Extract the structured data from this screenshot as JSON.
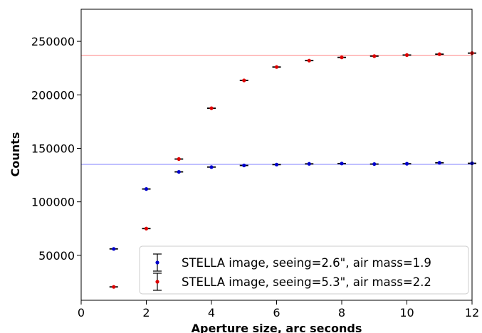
{
  "chart_data": {
    "type": "scatter",
    "xlabel": "Aperture size, arc seconds",
    "ylabel": "Counts",
    "xlim": [
      0,
      12
    ],
    "ylim": [
      8000,
      280000
    ],
    "xticks": [
      0,
      2,
      4,
      6,
      8,
      10,
      12
    ],
    "yticks": [
      50000,
      100000,
      150000,
      200000,
      250000
    ],
    "grid": false,
    "legend_position": "lower-right",
    "series": [
      {
        "name": "STELLA image, seeing=2.6\", air mass=1.9",
        "color": "#0000cc",
        "errorbar_color": "#000000",
        "x": [
          1,
          2,
          3,
          4,
          5,
          6,
          7,
          8,
          9,
          10,
          11,
          12
        ],
        "y": [
          56000,
          112000,
          128000,
          132500,
          134000,
          134800,
          135500,
          135800,
          135300,
          135600,
          136500,
          136000
        ],
        "reference_line": {
          "y": 135000,
          "color": "#9a9aff"
        }
      },
      {
        "name": "STELLA image, seeing=5.3\", air mass=2.2",
        "color": "#dd0000",
        "errorbar_color": "#000000",
        "x": [
          1,
          2,
          3,
          4,
          5,
          6,
          7,
          8,
          9,
          10,
          11,
          12
        ],
        "y": [
          20500,
          75000,
          140000,
          187500,
          213500,
          226000,
          232000,
          235000,
          236200,
          237200,
          238000,
          239000
        ],
        "reference_line": {
          "y": 237000,
          "color": "#ff9a9a"
        }
      }
    ]
  }
}
